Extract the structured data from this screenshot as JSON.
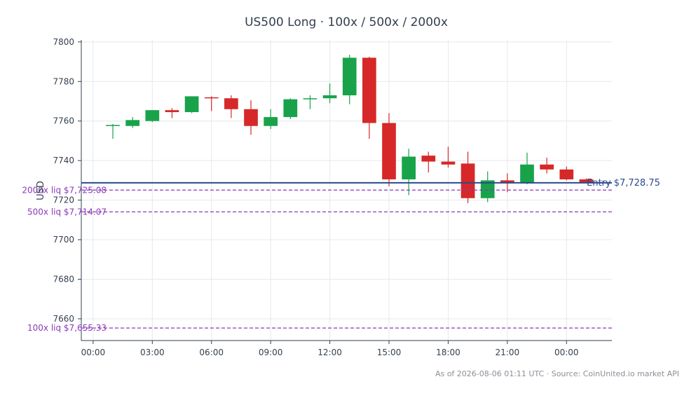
{
  "chart_data": {
    "type": "candlestick",
    "title": "US500 Long · 100x / 500x / 2000x",
    "ylabel": "USD",
    "xlabel": "",
    "ylim": [
      7649,
      7801
    ],
    "yticks": [
      7660,
      7680,
      7700,
      7720,
      7740,
      7760,
      7780,
      7800
    ],
    "xlim": [
      -0.6,
      26.3
    ],
    "xticks": [
      {
        "x": 0,
        "label": "00:00"
      },
      {
        "x": 3,
        "label": "03:00"
      },
      {
        "x": 6,
        "label": "06:00"
      },
      {
        "x": 9,
        "label": "09:00"
      },
      {
        "x": 12,
        "label": "12:00"
      },
      {
        "x": 15,
        "label": "15:00"
      },
      {
        "x": 18,
        "label": "18:00"
      },
      {
        "x": 21,
        "label": "21:00"
      },
      {
        "x": 24,
        "label": "00:00"
      }
    ],
    "grid": true,
    "up_color": "#18a34a",
    "down_color": "#d62828",
    "candles": [
      {
        "x": 1,
        "open": 7757.6,
        "high": 7758.5,
        "low": 7751.0,
        "close": 7758.0
      },
      {
        "x": 2,
        "open": 7757.5,
        "high": 7762.0,
        "low": 7756.5,
        "close": 7760.5
      },
      {
        "x": 3,
        "open": 7760.0,
        "high": 7765.5,
        "low": 7759.5,
        "close": 7765.5
      },
      {
        "x": 4,
        "open": 7765.5,
        "high": 7766.5,
        "low": 7761.5,
        "close": 7764.5
      },
      {
        "x": 5,
        "open": 7764.5,
        "high": 7772.5,
        "low": 7764.0,
        "close": 7772.5
      },
      {
        "x": 6,
        "open": 7772.0,
        "high": 7772.5,
        "low": 7765.0,
        "close": 7771.5
      },
      {
        "x": 7,
        "open": 7771.5,
        "high": 7773.0,
        "low": 7761.5,
        "close": 7766.0
      },
      {
        "x": 8,
        "open": 7766.0,
        "high": 7770.5,
        "low": 7753.0,
        "close": 7757.5
      },
      {
        "x": 9,
        "open": 7757.5,
        "high": 7766.0,
        "low": 7756.0,
        "close": 7762.0
      },
      {
        "x": 10,
        "open": 7762.0,
        "high": 7771.5,
        "low": 7761.0,
        "close": 7771.0
      },
      {
        "x": 11,
        "open": 7771.0,
        "high": 7773.0,
        "low": 7766.0,
        "close": 7771.5
      },
      {
        "x": 12,
        "open": 7771.5,
        "high": 7779.0,
        "low": 7769.0,
        "close": 7773.0
      },
      {
        "x": 13,
        "open": 7773.0,
        "high": 7793.5,
        "low": 7768.5,
        "close": 7792.0
      },
      {
        "x": 14,
        "open": 7792.0,
        "high": 7792.5,
        "low": 7751.0,
        "close": 7759.0
      },
      {
        "x": 15,
        "open": 7759.0,
        "high": 7764.0,
        "low": 7727.0,
        "close": 7730.5
      },
      {
        "x": 16,
        "open": 7730.5,
        "high": 7746.0,
        "low": 7722.5,
        "close": 7742.0
      },
      {
        "x": 17,
        "open": 7742.5,
        "high": 7744.5,
        "low": 7734.0,
        "close": 7739.5
      },
      {
        "x": 18,
        "open": 7739.5,
        "high": 7747.0,
        "low": 7736.5,
        "close": 7738.0
      },
      {
        "x": 19,
        "open": 7738.5,
        "high": 7744.5,
        "low": 7718.5,
        "close": 7721.0
      },
      {
        "x": 20,
        "open": 7721.0,
        "high": 7734.5,
        "low": 7719.0,
        "close": 7730.0
      },
      {
        "x": 21,
        "open": 7730.0,
        "high": 7733.5,
        "low": 7724.0,
        "close": 7728.5
      },
      {
        "x": 22,
        "open": 7728.5,
        "high": 7744.0,
        "low": 7728.0,
        "close": 7738.0
      },
      {
        "x": 23,
        "open": 7738.0,
        "high": 7741.5,
        "low": 7733.5,
        "close": 7735.5
      },
      {
        "x": 24,
        "open": 7735.5,
        "high": 7737.0,
        "low": 7730.0,
        "close": 7730.5
      },
      {
        "x": 25,
        "open": 7730.5,
        "high": 7731.0,
        "low": 7728.5,
        "close": 7729.0
      }
    ],
    "reference_lines": [
      {
        "y": 7728.75,
        "label": "Entry $7,728.75",
        "color": "#2a4a8f",
        "style": "solid",
        "label_side": "right"
      },
      {
        "y": 7725.08,
        "label": "2000x liq $7,725.08",
        "color": "#8a3ab9",
        "style": "dashed",
        "label_side": "left"
      },
      {
        "y": 7714.07,
        "label": "500x liq $7,714.07",
        "color": "#8a3ab9",
        "style": "dashed",
        "label_side": "left"
      },
      {
        "y": 7655.33,
        "label": "100x liq $7,655.33",
        "color": "#8a3ab9",
        "style": "dashed",
        "label_side": "left"
      }
    ]
  },
  "footer": {
    "text": "As of 2026-08-06 01:11 UTC · Source: CoinUnited.io market API"
  }
}
